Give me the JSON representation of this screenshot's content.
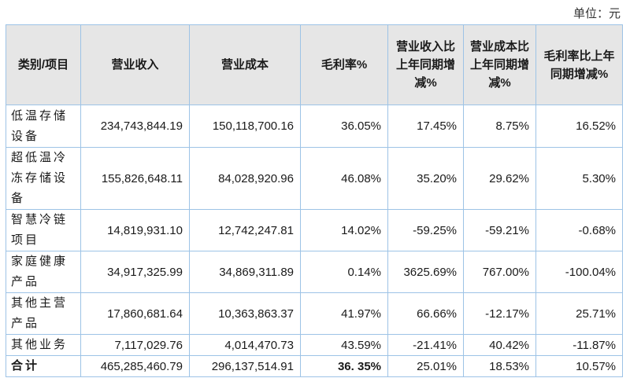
{
  "unit_label": "单位：元",
  "headers": [
    "类别/项目",
    "营业收入",
    "营业成本",
    "毛利率%",
    "营业收入比上年同期增减%",
    "营业成本比上年同期增减%",
    "毛利率比上年同期增减%"
  ],
  "rows": [
    {
      "category": "低温存储设备",
      "revenue": "234,743,844.19",
      "cost": "150,118,700.16",
      "margin": "36.05%",
      "rev_change": "17.45%",
      "cost_change": "8.75%",
      "margin_change": "16.52%"
    },
    {
      "category": "超低温冷冻存储设备",
      "revenue": "155,826,648.11",
      "cost": "84,028,920.96",
      "margin": "46.08%",
      "rev_change": "35.20%",
      "cost_change": "29.62%",
      "margin_change": "5.30%"
    },
    {
      "category": "智慧冷链项目",
      "revenue": "14,819,931.10",
      "cost": "12,742,247.81",
      "margin": "14.02%",
      "rev_change": "-59.25%",
      "cost_change": "-59.21%",
      "margin_change": "-0.68%"
    },
    {
      "category": "家庭健康产品",
      "revenue": "34,917,325.99",
      "cost": "34,869,311.89",
      "margin": "0.14%",
      "rev_change": "3625.69%",
      "cost_change": "767.00%",
      "margin_change": "-100.04%"
    },
    {
      "category": "其他主营产品",
      "revenue": "17,860,681.64",
      "cost": "10,363,863.37",
      "margin": "41.97%",
      "rev_change": "66.66%",
      "cost_change": "-12.17%",
      "margin_change": "25.71%"
    },
    {
      "category": "其他业务",
      "revenue": "7,117,029.76",
      "cost": "4,014,470.73",
      "margin": "43.59%",
      "rev_change": "-21.41%",
      "cost_change": "40.42%",
      "margin_change": "-11.87%"
    }
  ],
  "total": {
    "category": "合计",
    "revenue": "465,285,460.79",
    "cost": "296,137,514.91",
    "margin": "36. 35%",
    "rev_change": "25.01%",
    "cost_change": "18.53%",
    "margin_change": "10.57%"
  },
  "colors": {
    "border": "#9dc3e6",
    "header_bg": "#e6e6e6"
  }
}
